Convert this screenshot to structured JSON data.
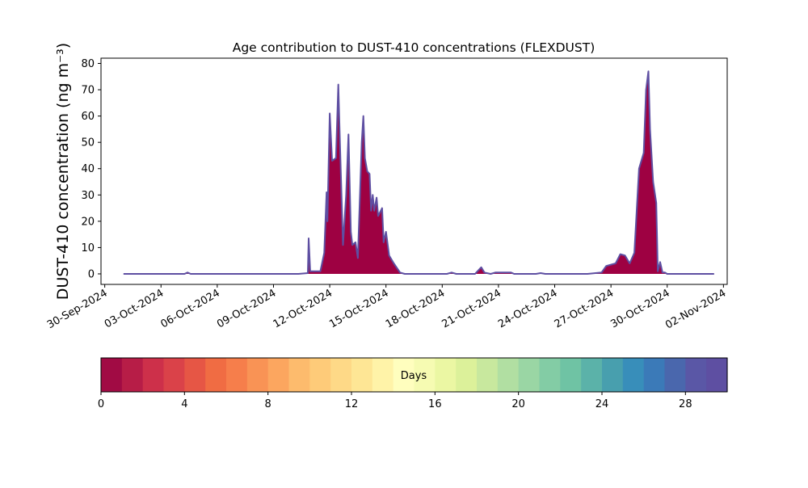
{
  "chart_data": {
    "type": "area",
    "title": "Age contribution to DUST-410 concentrations (FLEXDUST)",
    "xlabel": "",
    "ylabel": "DUST-410 concentration (ng m⁻³)",
    "ylim": [
      -4,
      82
    ],
    "xlim": [
      "2024-09-29T19:12",
      "2024-11-02T04:48"
    ],
    "yticks": [
      0,
      10,
      20,
      30,
      40,
      50,
      60,
      70,
      80
    ],
    "xticks": [
      "2024-09-30",
      "2024-10-03",
      "2024-10-06",
      "2024-10-09",
      "2024-10-12",
      "2024-10-15",
      "2024-10-18",
      "2024-10-21",
      "2024-10-24",
      "2024-10-27",
      "2024-10-30",
      "2024-11-02"
    ],
    "xtick_labels": [
      "30-Sep-2024",
      "03-Oct-2024",
      "06-Oct-2024",
      "09-Oct-2024",
      "12-Oct-2024",
      "15-Oct-2024",
      "18-Oct-2024",
      "21-Oct-2024",
      "24-Oct-2024",
      "27-Oct-2024",
      "30-Oct-2024",
      "02-Nov-2024"
    ],
    "series": [
      {
        "fill_color": "#9e0142",
        "edge_color": "#5e4fa2",
        "points": [
          [
            "2024-10-01T00:00",
            0
          ],
          [
            "2024-10-04T06:00",
            0
          ],
          [
            "2024-10-04T10:00",
            0.5
          ],
          [
            "2024-10-04T14:00",
            0
          ],
          [
            "2024-10-10T08:00",
            0
          ],
          [
            "2024-10-10T20:00",
            0.3
          ],
          [
            "2024-10-10T21:00",
            13.5
          ],
          [
            "2024-10-10T23:00",
            1
          ],
          [
            "2024-10-11T12:00",
            1
          ],
          [
            "2024-10-11T17:00",
            8
          ],
          [
            "2024-10-11T20:00",
            31
          ],
          [
            "2024-10-11T21:00",
            20
          ],
          [
            "2024-10-12T00:00",
            61
          ],
          [
            "2024-10-12T03:00",
            43
          ],
          [
            "2024-10-12T08:00",
            44
          ],
          [
            "2024-10-12T11:00",
            72
          ],
          [
            "2024-10-12T13:00",
            50
          ],
          [
            "2024-10-12T17:00",
            11
          ],
          [
            "2024-10-12T21:00",
            30
          ],
          [
            "2024-10-13T00:00",
            53
          ],
          [
            "2024-10-13T03:00",
            16
          ],
          [
            "2024-10-13T05:00",
            11
          ],
          [
            "2024-10-13T09:00",
            12
          ],
          [
            "2024-10-13T12:00",
            6
          ],
          [
            "2024-10-13T17:00",
            50
          ],
          [
            "2024-10-13T19:00",
            60
          ],
          [
            "2024-10-13T21:00",
            44
          ],
          [
            "2024-10-14T00:00",
            39
          ],
          [
            "2024-10-14T03:00",
            38
          ],
          [
            "2024-10-14T05:00",
            24
          ],
          [
            "2024-10-14T07:00",
            30
          ],
          [
            "2024-10-14T09:00",
            24
          ],
          [
            "2024-10-14T12:00",
            29
          ],
          [
            "2024-10-14T14:00",
            22
          ],
          [
            "2024-10-14T19:00",
            25
          ],
          [
            "2024-10-14T21:00",
            12
          ],
          [
            "2024-10-15T00:00",
            16
          ],
          [
            "2024-10-15T04:00",
            7
          ],
          [
            "2024-10-15T10:00",
            4
          ],
          [
            "2024-10-15T18:00",
            0.5
          ],
          [
            "2024-10-16T00:00",
            0
          ],
          [
            "2024-10-18T06:00",
            0
          ],
          [
            "2024-10-18T12:00",
            0.5
          ],
          [
            "2024-10-18T18:00",
            0
          ],
          [
            "2024-10-19T18:00",
            0
          ],
          [
            "2024-10-20T02:00",
            2.5
          ],
          [
            "2024-10-20T06:00",
            0.5
          ],
          [
            "2024-10-20T14:00",
            0
          ],
          [
            "2024-10-20T20:00",
            0.5
          ],
          [
            "2024-10-21T16:00",
            0.5
          ],
          [
            "2024-10-21T20:00",
            0
          ],
          [
            "2024-10-23T00:00",
            0
          ],
          [
            "2024-10-23T06:00",
            0.3
          ],
          [
            "2024-10-23T12:00",
            0
          ],
          [
            "2024-10-25T18:00",
            0
          ],
          [
            "2024-10-26T12:00",
            0.5
          ],
          [
            "2024-10-26T18:00",
            3
          ],
          [
            "2024-10-27T06:00",
            4
          ],
          [
            "2024-10-27T12:00",
            7.5
          ],
          [
            "2024-10-27T18:00",
            7
          ],
          [
            "2024-10-28T00:00",
            4
          ],
          [
            "2024-10-28T06:00",
            8
          ],
          [
            "2024-10-28T12:00",
            40
          ],
          [
            "2024-10-28T18:00",
            46
          ],
          [
            "2024-10-28T21:00",
            70
          ],
          [
            "2024-10-29T00:00",
            77
          ],
          [
            "2024-10-29T02:00",
            55
          ],
          [
            "2024-10-29T06:00",
            35
          ],
          [
            "2024-10-29T10:00",
            27
          ],
          [
            "2024-10-29T12:00",
            1
          ],
          [
            "2024-10-29T15:00",
            4.5
          ],
          [
            "2024-10-29T18:00",
            0.5
          ],
          [
            "2024-10-29T21:00",
            0.5
          ],
          [
            "2024-10-30T00:00",
            0
          ],
          [
            "2024-11-01T12:00",
            0
          ]
        ]
      }
    ],
    "colorbar": {
      "label": "Days",
      "range": [
        0,
        30
      ],
      "ticks": [
        0,
        4,
        8,
        12,
        16,
        20,
        24,
        28
      ],
      "colors": [
        "#a10b44",
        "#b71d47",
        "#cd304a",
        "#da4249",
        "#e65645",
        "#f06c43",
        "#f67e4b",
        "#f99355",
        "#fca65f",
        "#fdbb6d",
        "#fecb79",
        "#fed987",
        "#fee695",
        "#fff3a8",
        "#fffebe",
        "#f6fbb2",
        "#ebf7a3",
        "#dcf19a",
        "#c8e89e",
        "#b1dfa2",
        "#9ad6a4",
        "#83cca5",
        "#6fc3a4",
        "#5bb2a9",
        "#489fae",
        "#388eba",
        "#3b7ab8",
        "#4a67ad",
        "#5a57a6",
        "#5e4fa2"
      ]
    }
  }
}
